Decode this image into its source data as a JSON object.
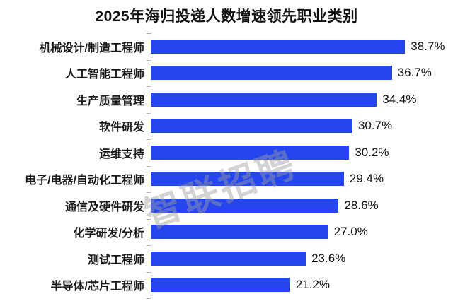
{
  "title": "2025年海归投递人数增速领先职业类别",
  "watermark": "智联招聘",
  "colors": {
    "bar": "#2546ef",
    "axis": "#b3b3b3",
    "title_text": "#111111",
    "value_text": "#111111"
  },
  "chart_data": {
    "type": "bar",
    "orientation": "horizontal",
    "title": "2025年海归投递人数增速领先职业类别",
    "categories": [
      "机械设计/制造工程师",
      "人工智能工程师",
      "生产质量管理",
      "软件研发",
      "运维支持",
      "电子/电器/自动化工程师",
      "通信及硬件研发",
      "化学研发/分析",
      "测试工程师",
      "半导体/芯片工程师"
    ],
    "values": [
      38.7,
      36.7,
      34.4,
      30.7,
      30.2,
      29.4,
      28.6,
      27.0,
      23.6,
      21.2
    ],
    "value_suffix": "%",
    "xlabel": "",
    "ylabel": "",
    "xlim": [
      0,
      46
    ],
    "grid": false,
    "legend": false,
    "data_labels": true
  }
}
